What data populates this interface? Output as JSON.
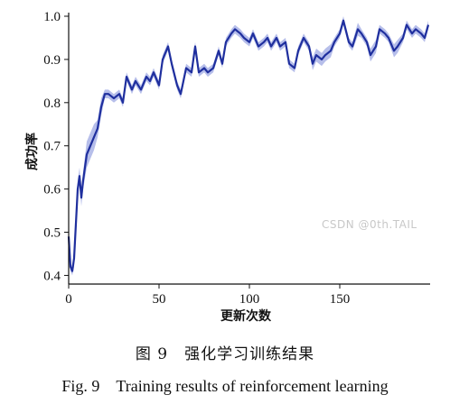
{
  "caption_cn": "图 9　强化学习训练结果",
  "caption_en": "Fig. 9　Training results of reinforcement learning",
  "watermark": "CSDN @0th.TAIL",
  "colors": {
    "line": "#1f2f9e",
    "band": "#a9b3e6"
  },
  "chart_data": {
    "type": "line",
    "title": "",
    "xlabel": "更新次数",
    "ylabel": "成功率",
    "xlim": [
      0,
      200
    ],
    "ylim": [
      0.38,
      1.0
    ],
    "x_ticks": [
      0,
      50,
      100,
      150
    ],
    "y_ticks": [
      0.4,
      0.5,
      0.6,
      0.7,
      0.8,
      0.9,
      1.0
    ],
    "x_tick_labels": [
      "0",
      "50",
      "100",
      "150"
    ],
    "y_tick_labels": [
      "0.4",
      "0.5",
      "0.6",
      "0.7",
      "0.8",
      "0.9",
      "1.0"
    ],
    "grid": false,
    "series": [
      {
        "x": [
          0,
          1,
          2,
          3,
          4,
          5,
          6,
          7,
          8,
          10,
          12,
          14,
          16,
          18,
          20,
          22,
          25,
          28,
          30,
          32,
          35,
          37,
          40,
          43,
          45,
          47,
          50,
          52,
          55,
          57,
          60,
          62,
          65,
          68,
          70,
          72,
          75,
          77,
          80,
          83,
          85,
          87,
          90,
          92,
          95,
          97,
          100,
          102,
          105,
          108,
          110,
          112,
          115,
          117,
          120,
          122,
          125,
          127,
          130,
          133,
          135,
          137,
          140,
          142,
          145,
          147,
          150,
          152,
          155,
          157,
          160,
          162,
          165,
          167,
          170,
          172,
          175,
          177,
          180,
          182,
          185,
          187,
          190,
          192,
          195,
          197,
          199
        ],
        "values": [
          0.49,
          0.42,
          0.41,
          0.44,
          0.52,
          0.6,
          0.63,
          0.58,
          0.62,
          0.68,
          0.7,
          0.72,
          0.74,
          0.79,
          0.82,
          0.82,
          0.81,
          0.82,
          0.8,
          0.86,
          0.83,
          0.85,
          0.83,
          0.86,
          0.85,
          0.87,
          0.84,
          0.9,
          0.93,
          0.89,
          0.84,
          0.82,
          0.88,
          0.87,
          0.93,
          0.87,
          0.88,
          0.87,
          0.88,
          0.92,
          0.89,
          0.94,
          0.96,
          0.97,
          0.96,
          0.95,
          0.94,
          0.96,
          0.93,
          0.94,
          0.95,
          0.93,
          0.95,
          0.93,
          0.94,
          0.89,
          0.88,
          0.92,
          0.95,
          0.93,
          0.89,
          0.91,
          0.9,
          0.91,
          0.92,
          0.94,
          0.96,
          0.99,
          0.94,
          0.93,
          0.97,
          0.96,
          0.94,
          0.91,
          0.93,
          0.97,
          0.96,
          0.95,
          0.92,
          0.93,
          0.95,
          0.98,
          0.96,
          0.97,
          0.96,
          0.95,
          0.98
        ],
        "band": [
          0.0,
          0.01,
          0.01,
          0.02,
          0.02,
          0.02,
          0.02,
          0.02,
          0.02,
          0.03,
          0.03,
          0.03,
          0.02,
          0.02,
          0.01,
          0.01,
          0.01,
          0.01,
          0.01,
          0.01,
          0.01,
          0.01,
          0.01,
          0.01,
          0.01,
          0.01,
          0.01,
          0.01,
          0.01,
          0.01,
          0.01,
          0.01,
          0.01,
          0.01,
          0.01,
          0.01,
          0.01,
          0.01,
          0.01,
          0.01,
          0.01,
          0.01,
          0.01,
          0.01,
          0.01,
          0.01,
          0.01,
          0.01,
          0.01,
          0.01,
          0.01,
          0.01,
          0.01,
          0.01,
          0.01,
          0.01,
          0.01,
          0.01,
          0.01,
          0.01,
          0.015,
          0.015,
          0.015,
          0.015,
          0.015,
          0.01,
          0.01,
          0.01,
          0.01,
          0.01,
          0.015,
          0.01,
          0.01,
          0.015,
          0.015,
          0.01,
          0.01,
          0.01,
          0.015,
          0.015,
          0.01,
          0.01,
          0.01,
          0.01,
          0.01,
          0.01,
          0.01
        ]
      }
    ]
  }
}
